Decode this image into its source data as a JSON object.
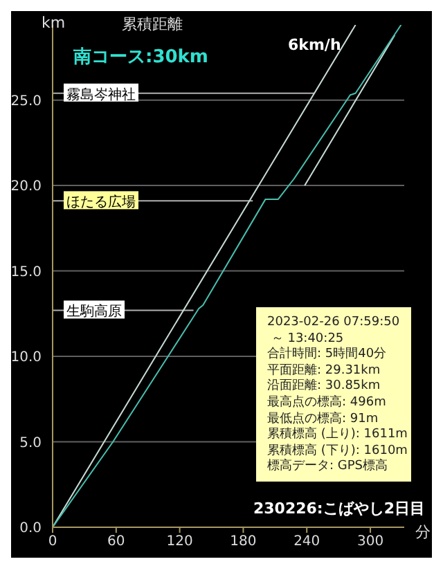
{
  "chart_data": {
    "type": "line",
    "title": "累積距離",
    "subtitle": "南コース:30km",
    "xlabel": "分",
    "ylabel": "km",
    "xlim": [
      0,
      332
    ],
    "xticks": [
      0,
      60,
      120,
      180,
      240,
      300
    ],
    "ylim": [
      0,
      29.4
    ],
    "yticks": [
      {
        "value": 0,
        "label": "0.0"
      },
      {
        "value": 5,
        "label": "5.0"
      },
      {
        "value": 10,
        "label": "10.0"
      },
      {
        "value": 15,
        "label": "15.0"
      },
      {
        "value": 20,
        "label": "20.0"
      },
      {
        "value": 25,
        "label": "25.0"
      }
    ],
    "grid": "y",
    "marker": "none",
    "line_style": "solid",
    "series": [
      {
        "color": "#c8dcd4",
        "x": [
          0,
          286
        ],
        "values": [
          0,
          29.4
        ]
      },
      {
        "color": "#c8dcd4",
        "x": [
          238,
          323
        ],
        "values": [
          20,
          28.8
        ]
      },
      {
        "color": "#48c0b0",
        "x": [
          0,
          57,
          109,
          138,
          142,
          201,
          213,
          228,
          281,
          286,
          329
        ],
        "values": [
          0,
          5,
          10,
          12.8,
          13.0,
          19.2,
          19.2,
          20.4,
          25.3,
          25.4,
          29.4
        ]
      }
    ],
    "annotations": [
      {
        "text": "霧島岑神社",
        "x": 247,
        "y": 25.4
      },
      {
        "text": "ほたる広場",
        "x": 189,
        "y": 19.1
      },
      {
        "text": "生駒高原",
        "x": 133,
        "y": 12.7
      },
      "6km/h",
      "2023-02-26 07:59:50",
      " ～ 13:40:25",
      "合計時間: 5時間40分",
      "平面距離: 29.31km",
      "沿面距離: 30.85km",
      "最高点の標高: 496m",
      "最低点の標高: 91m",
      "累積標高 (上り): 1611m",
      "累積標高 (下り): 1610m",
      "標高データ: GPS標高",
      "230226:こばやし2日目"
    ]
  }
}
